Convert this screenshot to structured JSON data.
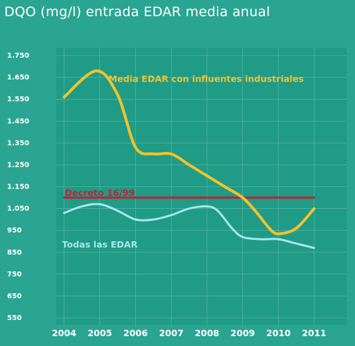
{
  "chart_data": {
    "type": "line",
    "title": "DQO (mg/l) entrada EDAR media anual",
    "xlabel": "",
    "ylabel": "",
    "categories": [
      "2004",
      "2005",
      "2006",
      "2007",
      "2008",
      "2009",
      "2010",
      "2011"
    ],
    "y_ticks": [
      "1.750",
      "1.650",
      "1.550",
      "1.450",
      "1.350",
      "1.250",
      "1.150",
      "1.050",
      "950",
      "850",
      "750",
      "650",
      "550"
    ],
    "ylim": [
      550,
      1750
    ],
    "grid": true,
    "series": [
      {
        "name": "Media EDAR con influentes industriales",
        "color": "#f2c22e",
        "x": [
          2004,
          2004.9,
          2005.5,
          2006,
          2006.5,
          2007,
          2007.5,
          2008,
          2008.5,
          2009,
          2009.4,
          2009.8,
          2010.05,
          2010.5,
          2011
        ],
        "y": [
          1560,
          1680,
          1570,
          1330,
          1300,
          1300,
          1250,
          1200,
          1150,
          1100,
          1030,
          950,
          935,
          960,
          1050
        ]
      },
      {
        "name": "Todas las EDAR",
        "color": "#a8e6ec",
        "x": [
          2004,
          2004.5,
          2005,
          2005.5,
          2006,
          2006.5,
          2007,
          2007.5,
          2008,
          2008.3,
          2008.7,
          2009,
          2009.5,
          2010,
          2010.5,
          2011
        ],
        "y": [
          1030,
          1060,
          1070,
          1040,
          1000,
          1000,
          1020,
          1050,
          1060,
          1040,
          960,
          920,
          910,
          910,
          890,
          870
        ]
      },
      {
        "name": "Decreto 16/99",
        "color": "#c0223a",
        "x": [
          2004,
          2011
        ],
        "y": [
          1100,
          1100
        ]
      }
    ]
  }
}
